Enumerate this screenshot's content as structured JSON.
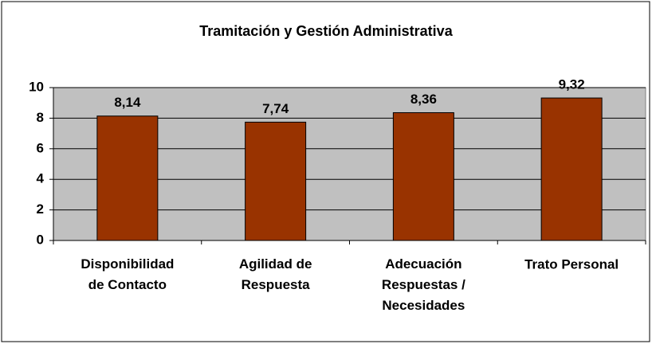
{
  "chart_data": {
    "type": "bar",
    "title": "Tramitación y Gestión Administrativa",
    "categories": [
      "Disponibilidad\nde Contacto",
      "Agilidad de\nRespuesta",
      "Adecuación\nRespuestas /\nNecesidades",
      "Trato Personal"
    ],
    "values": [
      8.14,
      7.74,
      8.36,
      9.32
    ],
    "value_labels": [
      "8,14",
      "7,74",
      "8,36",
      "9,32"
    ],
    "color": "#993300",
    "ylim": [
      0,
      10
    ],
    "yticks": [
      0,
      2,
      4,
      6,
      8,
      10
    ],
    "grid": true
  }
}
